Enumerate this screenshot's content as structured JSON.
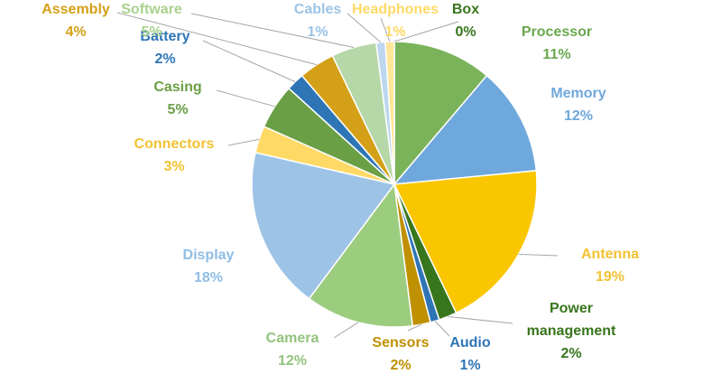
{
  "chart_data": {
    "type": "pie",
    "title": "",
    "legend": "none",
    "slices": [
      {
        "label": "Processor",
        "value": 11,
        "display": "11%",
        "color": "#7bb35a"
      },
      {
        "label": "Memory",
        "value": 12,
        "display": "12%",
        "color": "#6fa8dc"
      },
      {
        "label": "Antenna",
        "value": 19,
        "display": "19%",
        "color": "#f9c600"
      },
      {
        "label": "Power management",
        "lines": [
          "Power",
          "management"
        ],
        "value": 2,
        "display": "2%",
        "color": "#38761d"
      },
      {
        "label": "Audio",
        "value": 1,
        "display": "1%",
        "color": "#2e75b6"
      },
      {
        "label": "Sensors",
        "value": 2,
        "display": "2%",
        "color": "#bf9000"
      },
      {
        "label": "Camera",
        "value": 12,
        "display": "12%",
        "color": "#9ccc7e"
      },
      {
        "label": "Display",
        "value": 18,
        "display": "18%",
        "color": "#9dc3e6"
      },
      {
        "label": "Connectors",
        "value": 3,
        "display": "3%",
        "color": "#ffd966"
      },
      {
        "label": "Casing",
        "value": 5,
        "display": "5%",
        "color": "#6a9f45"
      },
      {
        "label": "Battery",
        "value": 2,
        "display": "2%",
        "color": "#2e75b6"
      },
      {
        "label": "Assembly",
        "value": 4,
        "display": "4%",
        "color": "#d4a017"
      },
      {
        "label": "Software",
        "value": 5,
        "display": "5%",
        "color": "#b6d7a8"
      },
      {
        "label": "Cables",
        "value": 1,
        "display": "1%",
        "color": "#bdd7ee"
      },
      {
        "label": "Headphones",
        "value": 1,
        "display": "1%",
        "color": "#ffe599"
      },
      {
        "label": "Box",
        "value": 0,
        "display": "0%",
        "color": "#38761d"
      }
    ]
  }
}
